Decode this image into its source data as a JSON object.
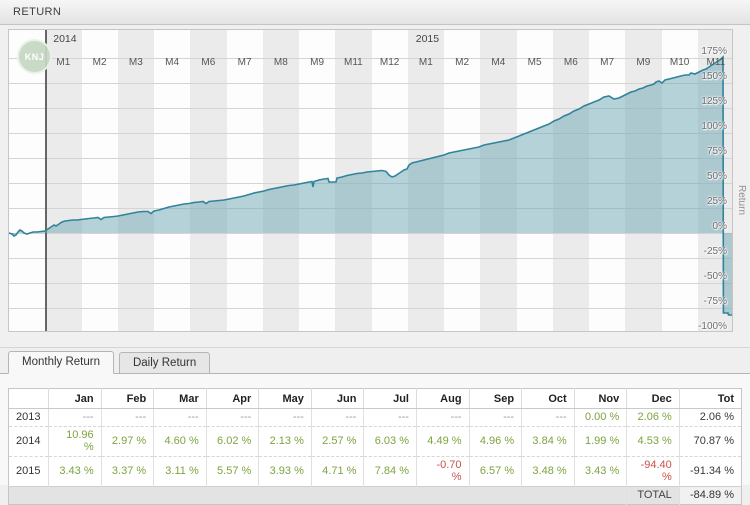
{
  "header": {
    "title": "RETURN"
  },
  "chart": {
    "badge_label": "KNJ",
    "right_axis_label": "Return",
    "month_labels": [
      "",
      "M1",
      "M2",
      "M3",
      "M4",
      "M6",
      "M7",
      "M8",
      "M9",
      "M11",
      "M12",
      "M1",
      "M2",
      "M4",
      "M5",
      "M6",
      "M7",
      "M9",
      "M10",
      "M11"
    ],
    "year_labels": [
      {
        "text": "2014",
        "band": 1
      },
      {
        "text": "2015",
        "band": 11
      }
    ],
    "colors": {
      "line": "#30839a",
      "fill": "rgba(111,168,181,0.5)",
      "band_gray": "#ebebeb",
      "band_white": "#fdfdfd",
      "grid": "#d4d4d4",
      "year_line": "#454545",
      "badge_bg": "#c4d8c1"
    }
  },
  "chart_data": {
    "type": "area",
    "title": "RETURN",
    "ylabel": "Return",
    "ylim_pct": [
      -100,
      175
    ],
    "y_ticks_pct": [
      175,
      150,
      125,
      100,
      75,
      50,
      25,
      0,
      -25,
      -50,
      -75,
      -100
    ],
    "x_axis_years": [
      "2014",
      "2015"
    ],
    "x_axis_month_ticks": {
      "2014": [
        "M1",
        "M2",
        "M3",
        "M4",
        "M6",
        "M7",
        "M8",
        "M9",
        "M11",
        "M12"
      ],
      "2015": [
        "M1",
        "M2",
        "M4",
        "M5",
        "M6",
        "M7",
        "M9",
        "M10",
        "M11"
      ]
    },
    "monthly_returns_pct": {
      "2013": [
        null,
        null,
        null,
        null,
        null,
        null,
        null,
        null,
        null,
        null,
        0.0,
        2.06
      ],
      "2014": [
        10.96,
        2.97,
        4.6,
        6.02,
        2.13,
        2.57,
        6.03,
        4.49,
        4.96,
        3.84,
        1.99,
        4.53
      ],
      "2015": [
        3.43,
        3.37,
        3.11,
        5.57,
        3.93,
        4.71,
        7.84,
        -0.7,
        6.57,
        3.48,
        3.43,
        -94.4
      ]
    },
    "yearly_totals_pct": {
      "2013": 2.06,
      "2014": 70.87,
      "2015": -91.34
    },
    "total_pct": -84.89,
    "cumulative_curve_points": [
      [
        0,
        0
      ],
      [
        3,
        -1
      ],
      [
        5,
        -3
      ],
      [
        7,
        -2
      ],
      [
        9,
        1
      ],
      [
        11,
        3
      ],
      [
        13,
        2
      ],
      [
        15,
        0
      ],
      [
        18,
        -1
      ],
      [
        21,
        0
      ],
      [
        24,
        1
      ],
      [
        28,
        1
      ],
      [
        32,
        1.5
      ],
      [
        36,
        2
      ],
      [
        39,
        4
      ],
      [
        42,
        6
      ],
      [
        45,
        8
      ],
      [
        47,
        7
      ],
      [
        50,
        9
      ],
      [
        53,
        11
      ],
      [
        56,
        12
      ],
      [
        60,
        12.5
      ],
      [
        64,
        13
      ],
      [
        68,
        13
      ],
      [
        72,
        13.5
      ],
      [
        76,
        14
      ],
      [
        80,
        14.5
      ],
      [
        85,
        15
      ],
      [
        89,
        15.5
      ],
      [
        92,
        13.5
      ],
      [
        95,
        15.5
      ],
      [
        100,
        16
      ],
      [
        105,
        16.5
      ],
      [
        109,
        17
      ],
      [
        114,
        18
      ],
      [
        119,
        19
      ],
      [
        124,
        20
      ],
      [
        129,
        21
      ],
      [
        134,
        21.5
      ],
      [
        139,
        21.5
      ],
      [
        142,
        19.5
      ],
      [
        145,
        22
      ],
      [
        150,
        23
      ],
      [
        155,
        24.5
      ],
      [
        160,
        26
      ],
      [
        165,
        27
      ],
      [
        170,
        28
      ],
      [
        175,
        29
      ],
      [
        180,
        29.5
      ],
      [
        185,
        30.5
      ],
      [
        190,
        31
      ],
      [
        194,
        31.5
      ],
      [
        197,
        29.5
      ],
      [
        200,
        31.5
      ],
      [
        205,
        32
      ],
      [
        210,
        32.5
      ],
      [
        215,
        33
      ],
      [
        220,
        34
      ],
      [
        225,
        35
      ],
      [
        230,
        36
      ],
      [
        235,
        37
      ],
      [
        240,
        38.5
      ],
      [
        245,
        40
      ],
      [
        250,
        41
      ],
      [
        255,
        42
      ],
      [
        260,
        43.5
      ],
      [
        265,
        44.5
      ],
      [
        270,
        45.5
      ],
      [
        275,
        46.5
      ],
      [
        280,
        47.5
      ],
      [
        285,
        48
      ],
      [
        290,
        49
      ],
      [
        295,
        50
      ],
      [
        300,
        51
      ],
      [
        303,
        51.5
      ],
      [
        304,
        46
      ],
      [
        305,
        51.5
      ],
      [
        310,
        53
      ],
      [
        315,
        54
      ],
      [
        319,
        54.5
      ],
      [
        320,
        51
      ],
      [
        327,
        51
      ],
      [
        328,
        55
      ],
      [
        333,
        56
      ],
      [
        338,
        57.5
      ],
      [
        343,
        58.5
      ],
      [
        348,
        59.5
      ],
      [
        353,
        60
      ],
      [
        358,
        61
      ],
      [
        363,
        61.5
      ],
      [
        368,
        62
      ],
      [
        373,
        62.5
      ],
      [
        377,
        61.5
      ],
      [
        380,
        58
      ],
      [
        383,
        56
      ],
      [
        386,
        57
      ],
      [
        389,
        59
      ],
      [
        392,
        61
      ],
      [
        395,
        63
      ],
      [
        398,
        64
      ],
      [
        400,
        68
      ],
      [
        403,
        70
      ],
      [
        407,
        71
      ],
      [
        411,
        72
      ],
      [
        415,
        73
      ],
      [
        419,
        74
      ],
      [
        423,
        75
      ],
      [
        427,
        76
      ],
      [
        431,
        77
      ],
      [
        435,
        78
      ],
      [
        440,
        80
      ],
      [
        445,
        81
      ],
      [
        450,
        82
      ],
      [
        455,
        83
      ],
      [
        460,
        84
      ],
      [
        465,
        85
      ],
      [
        470,
        86
      ],
      [
        475,
        88
      ],
      [
        480,
        89
      ],
      [
        485,
        90
      ],
      [
        490,
        91
      ],
      [
        495,
        92
      ],
      [
        500,
        93
      ],
      [
        505,
        95
      ],
      [
        510,
        97
      ],
      [
        515,
        99
      ],
      [
        520,
        101
      ],
      [
        525,
        103
      ],
      [
        530,
        105
      ],
      [
        535,
        107
      ],
      [
        540,
        109
      ],
      [
        545,
        112
      ],
      [
        550,
        114
      ],
      [
        555,
        117
      ],
      [
        560,
        119
      ],
      [
        565,
        122
      ],
      [
        570,
        124
      ],
      [
        575,
        127
      ],
      [
        580,
        129
      ],
      [
        585,
        131
      ],
      [
        590,
        133
      ],
      [
        595,
        136
      ],
      [
        600,
        137
      ],
      [
        605,
        134
      ],
      [
        610,
        135
      ],
      [
        614,
        137
      ],
      [
        618,
        139
      ],
      [
        622,
        141
      ],
      [
        626,
        142
      ],
      [
        630,
        144
      ],
      [
        634,
        145
      ],
      [
        638,
        147
      ],
      [
        642,
        148
      ],
      [
        645,
        149
      ],
      [
        647,
        151
      ],
      [
        650,
        152
      ],
      [
        653,
        150
      ],
      [
        656,
        153
      ],
      [
        660,
        154
      ],
      [
        664,
        155
      ],
      [
        668,
        156
      ],
      [
        672,
        157
      ],
      [
        676,
        158
      ],
      [
        680,
        158
      ],
      [
        682,
        160
      ],
      [
        686,
        159
      ],
      [
        690,
        161
      ],
      [
        694,
        163
      ],
      [
        697,
        164
      ],
      [
        700,
        166
      ],
      [
        703,
        168
      ],
      [
        706,
        170
      ],
      [
        709,
        172
      ],
      [
        711,
        173
      ],
      [
        713,
        175
      ],
      [
        714,
        176
      ],
      [
        714.4,
        -80
      ],
      [
        719,
        -80
      ],
      [
        719.5,
        -82
      ],
      [
        725,
        -82
      ]
    ]
  },
  "tabs": [
    {
      "label": "Monthly Return",
      "active": true
    },
    {
      "label": "Daily Return",
      "active": false
    }
  ],
  "table": {
    "columns": [
      "",
      "Jan",
      "Feb",
      "Mar",
      "Apr",
      "May",
      "Jun",
      "Jul",
      "Aug",
      "Sep",
      "Oct",
      "Nov",
      "Dec",
      "Tot"
    ],
    "rows": [
      {
        "year": "2013",
        "cells": [
          "---",
          "---",
          "---",
          "---",
          "---",
          "---",
          "---",
          "---",
          "---",
          "---",
          "0.00 %",
          "2.06 %"
        ],
        "total": "2.06 %"
      },
      {
        "year": "2014",
        "cells": [
          "10.96 %",
          "2.97 %",
          "4.60 %",
          "6.02 %",
          "2.13 %",
          "2.57 %",
          "6.03 %",
          "4.49 %",
          "4.96 %",
          "3.84 %",
          "1.99 %",
          "4.53 %"
        ],
        "total": "70.87 %"
      },
      {
        "year": "2015",
        "cells": [
          "3.43 %",
          "3.37 %",
          "3.11 %",
          "5.57 %",
          "3.93 %",
          "4.71 %",
          "7.84 %",
          "-0.70 %",
          "6.57 %",
          "3.48 %",
          "3.43 %",
          "-94.40 %"
        ],
        "total": "-91.34 %"
      }
    ],
    "footer": {
      "label": "TOTAL",
      "value": "-84.89 %"
    }
  }
}
